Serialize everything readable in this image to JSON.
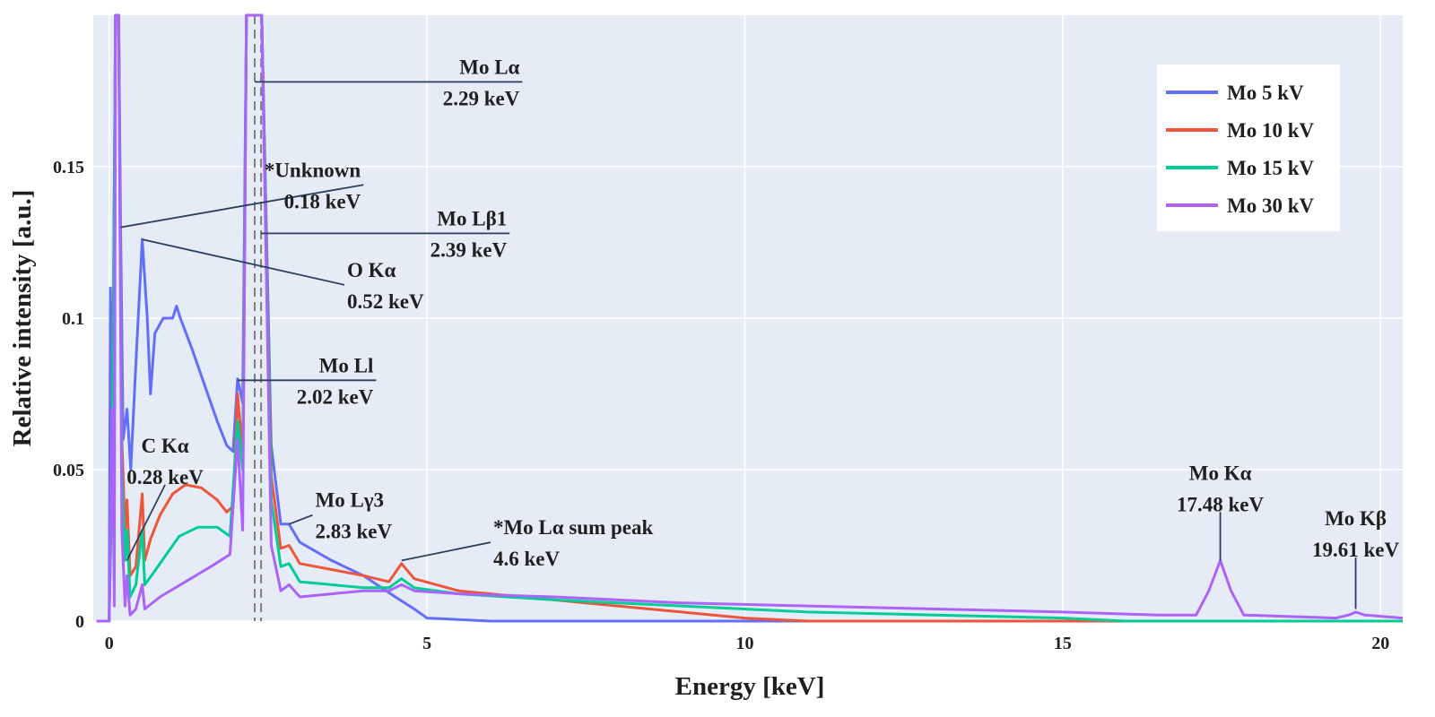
{
  "chart_data": {
    "type": "line",
    "title": "",
    "xlabel": "Energy [keV]",
    "ylabel": "Relative intensity [a.u.]",
    "xlim": [
      -0.25,
      20.35
    ],
    "ylim": [
      0,
      0.2
    ],
    "xticks": [
      0,
      5,
      10,
      15,
      20
    ],
    "yticks": [
      0,
      0.05,
      0.1,
      0.15
    ],
    "ytick_labels": [
      "0",
      "0.05",
      "0.1",
      "0.15"
    ],
    "grid": true,
    "legend_position": "top-right",
    "plot_background": "#e5ecf6",
    "grid_color": "#ffffff",
    "annotation_line_color": "#2a3f5f",
    "reference_lines": [
      2.29,
      2.39
    ],
    "series": [
      {
        "name": "Mo 5 kV",
        "color": "#636efa",
        "points": [
          [
            -0.2,
            0
          ],
          [
            0,
            0
          ],
          [
            0.02,
            0.11
          ],
          [
            0.06,
            0.07
          ],
          [
            0.1,
            0.2
          ],
          [
            0.15,
            0.2
          ],
          [
            0.18,
            0.13
          ],
          [
            0.22,
            0.06
          ],
          [
            0.28,
            0.07
          ],
          [
            0.34,
            0.05
          ],
          [
            0.42,
            0.085
          ],
          [
            0.52,
            0.126
          ],
          [
            0.6,
            0.1
          ],
          [
            0.65,
            0.075
          ],
          [
            0.72,
            0.095
          ],
          [
            0.85,
            0.1
          ],
          [
            1.0,
            0.1
          ],
          [
            1.06,
            0.104
          ],
          [
            1.12,
            0.1
          ],
          [
            1.3,
            0.09
          ],
          [
            1.5,
            0.078
          ],
          [
            1.7,
            0.066
          ],
          [
            1.85,
            0.058
          ],
          [
            1.95,
            0.056
          ],
          [
            2.02,
            0.08
          ],
          [
            2.1,
            0.072
          ],
          [
            2.16,
            0.2
          ],
          [
            2.4,
            0.2
          ],
          [
            2.55,
            0.058
          ],
          [
            2.7,
            0.032
          ],
          [
            2.83,
            0.032
          ],
          [
            3.0,
            0.026
          ],
          [
            3.5,
            0.02
          ],
          [
            4.0,
            0.015
          ],
          [
            4.5,
            0.008
          ],
          [
            4.8,
            0.004
          ],
          [
            5.0,
            0.001
          ],
          [
            6.0,
            0
          ],
          [
            20.35,
            0
          ]
        ]
      },
      {
        "name": "Mo 10 kV",
        "color": "#ef553b",
        "points": [
          [
            -0.2,
            0
          ],
          [
            0,
            0
          ],
          [
            0.05,
            0.06
          ],
          [
            0.1,
            0.2
          ],
          [
            0.15,
            0.2
          ],
          [
            0.2,
            0.06
          ],
          [
            0.25,
            0.03
          ],
          [
            0.28,
            0.04
          ],
          [
            0.33,
            0.015
          ],
          [
            0.42,
            0.018
          ],
          [
            0.52,
            0.042
          ],
          [
            0.56,
            0.02
          ],
          [
            0.65,
            0.027
          ],
          [
            0.8,
            0.035
          ],
          [
            1.0,
            0.042
          ],
          [
            1.2,
            0.045
          ],
          [
            1.45,
            0.044
          ],
          [
            1.7,
            0.04
          ],
          [
            1.85,
            0.036
          ],
          [
            1.95,
            0.038
          ],
          [
            2.02,
            0.075
          ],
          [
            2.1,
            0.055
          ],
          [
            2.16,
            0.2
          ],
          [
            2.4,
            0.2
          ],
          [
            2.55,
            0.048
          ],
          [
            2.7,
            0.024
          ],
          [
            2.83,
            0.025
          ],
          [
            3.0,
            0.019
          ],
          [
            3.5,
            0.017
          ],
          [
            4.0,
            0.015
          ],
          [
            4.4,
            0.013
          ],
          [
            4.6,
            0.019
          ],
          [
            4.8,
            0.014
          ],
          [
            5.5,
            0.01
          ],
          [
            6.5,
            0.008
          ],
          [
            7.5,
            0.006
          ],
          [
            8.5,
            0.004
          ],
          [
            9.5,
            0.002
          ],
          [
            10.0,
            0.001
          ],
          [
            11.0,
            0
          ],
          [
            20.35,
            0
          ]
        ]
      },
      {
        "name": "Mo 15 kV",
        "color": "#00cc96",
        "points": [
          [
            -0.2,
            0
          ],
          [
            0,
            0
          ],
          [
            0.05,
            0.05
          ],
          [
            0.1,
            0.2
          ],
          [
            0.15,
            0.2
          ],
          [
            0.2,
            0.05
          ],
          [
            0.25,
            0.02
          ],
          [
            0.28,
            0.03
          ],
          [
            0.33,
            0.008
          ],
          [
            0.42,
            0.012
          ],
          [
            0.52,
            0.03
          ],
          [
            0.56,
            0.012
          ],
          [
            0.7,
            0.016
          ],
          [
            0.9,
            0.022
          ],
          [
            1.1,
            0.028
          ],
          [
            1.4,
            0.031
          ],
          [
            1.7,
            0.031
          ],
          [
            1.9,
            0.028
          ],
          [
            2.02,
            0.066
          ],
          [
            2.1,
            0.05
          ],
          [
            2.16,
            0.2
          ],
          [
            2.4,
            0.2
          ],
          [
            2.55,
            0.04
          ],
          [
            2.7,
            0.018
          ],
          [
            2.83,
            0.019
          ],
          [
            3.0,
            0.013
          ],
          [
            3.5,
            0.012
          ],
          [
            4.0,
            0.011
          ],
          [
            4.4,
            0.011
          ],
          [
            4.6,
            0.014
          ],
          [
            4.8,
            0.011
          ],
          [
            5.5,
            0.009
          ],
          [
            7.0,
            0.007
          ],
          [
            9.0,
            0.005
          ],
          [
            11.0,
            0.003
          ],
          [
            13.0,
            0.002
          ],
          [
            15.0,
            0.001
          ],
          [
            16.0,
            0
          ],
          [
            20.35,
            0
          ]
        ]
      },
      {
        "name": "Mo 30 kV",
        "color": "#ab63fa",
        "points": [
          [
            -0.2,
            0
          ],
          [
            0,
            0
          ],
          [
            0.05,
            0.07
          ],
          [
            0.08,
            0.005
          ],
          [
            0.1,
            0.2
          ],
          [
            0.15,
            0.2
          ],
          [
            0.2,
            0.03
          ],
          [
            0.25,
            0.005
          ],
          [
            0.28,
            0.015
          ],
          [
            0.33,
            0.002
          ],
          [
            0.42,
            0.004
          ],
          [
            0.52,
            0.012
          ],
          [
            0.56,
            0.004
          ],
          [
            0.8,
            0.008
          ],
          [
            1.2,
            0.013
          ],
          [
            1.6,
            0.018
          ],
          [
            1.9,
            0.022
          ],
          [
            2.02,
            0.06
          ],
          [
            2.1,
            0.03
          ],
          [
            2.16,
            0.2
          ],
          [
            2.4,
            0.2
          ],
          [
            2.55,
            0.025
          ],
          [
            2.7,
            0.01
          ],
          [
            2.83,
            0.012
          ],
          [
            3.0,
            0.008
          ],
          [
            3.5,
            0.009
          ],
          [
            4.0,
            0.01
          ],
          [
            4.4,
            0.01
          ],
          [
            4.6,
            0.012
          ],
          [
            4.8,
            0.01
          ],
          [
            5.5,
            0.009
          ],
          [
            7.0,
            0.008
          ],
          [
            9.0,
            0.006
          ],
          [
            11.0,
            0.005
          ],
          [
            13.0,
            0.004
          ],
          [
            15.0,
            0.003
          ],
          [
            16.5,
            0.002
          ],
          [
            17.1,
            0.002
          ],
          [
            17.3,
            0.01
          ],
          [
            17.48,
            0.02
          ],
          [
            17.65,
            0.01
          ],
          [
            17.85,
            0.002
          ],
          [
            19.3,
            0.001
          ],
          [
            19.5,
            0.002
          ],
          [
            19.61,
            0.003
          ],
          [
            19.75,
            0.002
          ],
          [
            20.35,
            0.001
          ]
        ]
      }
    ],
    "annotations": [
      {
        "name": "mo-la",
        "lines": [
          "Mo Lα",
          "2.29 keV"
        ],
        "x": 2.29,
        "y": 0.178,
        "tx": 6.5,
        "ty": 0.178,
        "anchor": "end"
      },
      {
        "name": "unknown",
        "lines": [
          "*Unknown",
          "0.18 keV"
        ],
        "x": 0.18,
        "y": 0.13,
        "tx": 4.0,
        "ty": 0.144,
        "anchor": "end"
      },
      {
        "name": "mo-lb1",
        "lines": [
          "Mo Lβ1",
          "2.39 keV"
        ],
        "x": 2.39,
        "y": 0.128,
        "tx": 6.3,
        "ty": 0.128,
        "anchor": "end"
      },
      {
        "name": "o-ka",
        "lines": [
          "O Kα",
          "0.52 keV"
        ],
        "x": 0.52,
        "y": 0.126,
        "tx": 3.7,
        "ty": 0.111,
        "anchor": "start"
      },
      {
        "name": "mo-ll",
        "lines": [
          "Mo Ll",
          "2.02 keV"
        ],
        "x": 2.02,
        "y": 0.0795,
        "tx": 4.2,
        "ty": 0.0795,
        "anchor": "end"
      },
      {
        "name": "c-ka",
        "lines": [
          "C Kα",
          "0.28 keV"
        ],
        "x": 0.28,
        "y": 0.02,
        "tx": 0.88,
        "ty": 0.045,
        "anchor": "middle"
      },
      {
        "name": "mo-lg3",
        "lines": [
          "Mo Lγ3",
          "2.83 keV"
        ],
        "x": 2.83,
        "y": 0.032,
        "tx": 3.2,
        "ty": 0.035,
        "anchor": "start"
      },
      {
        "name": "mo-la-sum",
        "lines": [
          "*Mo Lα sum peak",
          "4.6 keV"
        ],
        "x": 4.6,
        "y": 0.02,
        "tx": 6.0,
        "ty": 0.026,
        "anchor": "start"
      },
      {
        "name": "mo-ka",
        "lines": [
          "Mo Kα",
          "17.48 keV"
        ],
        "x": 17.48,
        "y": 0.02,
        "tx": 17.48,
        "ty": 0.036,
        "anchor": "middle"
      },
      {
        "name": "mo-kb",
        "lines": [
          "Mo Kβ",
          "19.61 keV"
        ],
        "x": 19.61,
        "y": 0.004,
        "tx": 19.61,
        "ty": 0.021,
        "anchor": "middle"
      }
    ]
  }
}
